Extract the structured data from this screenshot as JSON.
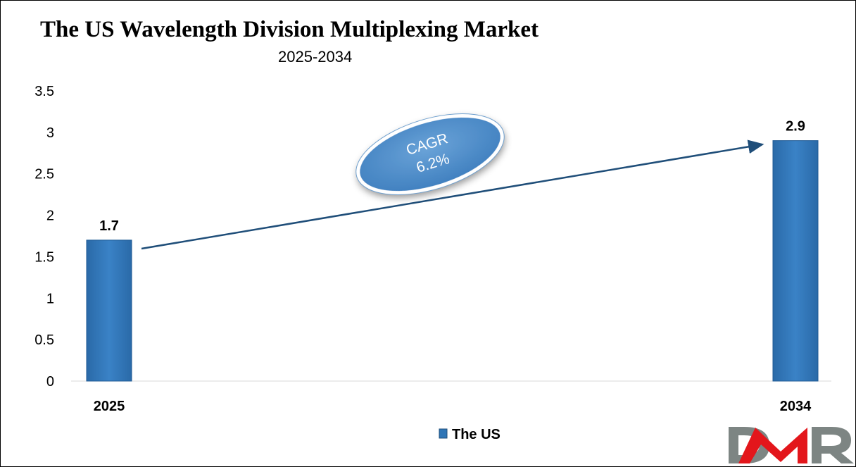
{
  "chart_data": {
    "type": "bar",
    "title": "The US Wavelength Division Multiplexing Market",
    "subtitle": "2025-2034",
    "categories": [
      "2025",
      "2034"
    ],
    "series": [
      {
        "name": "The US",
        "values": [
          1.7,
          2.9
        ],
        "color": "#2E75B6"
      }
    ],
    "data_labels": [
      "1.7",
      "2.9"
    ],
    "yticks": [
      "0",
      "0.5",
      "1",
      "1.5",
      "2",
      "2.5",
      "3",
      "3.5"
    ],
    "ylim": [
      0,
      3.5
    ],
    "xlabel": "",
    "ylabel": "",
    "grid": false,
    "legend": {
      "position": "bottom",
      "entries": [
        "The US"
      ]
    },
    "annotation": {
      "line1": "CAGR",
      "line2": "6.2%"
    }
  },
  "logo": {
    "text": "DMR"
  }
}
